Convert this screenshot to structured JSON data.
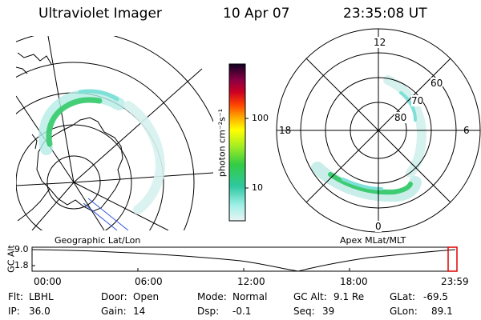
{
  "header": {
    "title": "Ultraviolet Imager",
    "date": "10 Apr 07",
    "time": "23:35:08 UT"
  },
  "colorbar": {
    "unit_label": "photon cm⁻²s⁻¹",
    "tick_100": "100",
    "tick_10": "10"
  },
  "left_map": {
    "caption": "Geographic Lat/Lon"
  },
  "right_map": {
    "caption": "Apex MLat/MLT",
    "mlt_12": "12",
    "mlt_18": "18",
    "mlt_6": "6",
    "mlt_0": "0",
    "lat_60": "60",
    "lat_70": "70",
    "lat_80": "80"
  },
  "timeline": {
    "ylabel": "GC Alt",
    "y_top": "9.0",
    "y_bottom": "1.8",
    "ticks": [
      "00:00",
      "06:00",
      "12:00",
      "18:00",
      "23:59"
    ]
  },
  "status": {
    "row1": [
      {
        "label": "Flt:",
        "value": "LBHL"
      },
      {
        "label": "Door:",
        "value": "Open"
      },
      {
        "label": "Mode:",
        "value": "Normal"
      },
      {
        "label": "GC Alt:",
        "value": "9.1 Re"
      },
      {
        "label": "GLat:",
        "value": "-69.5"
      }
    ],
    "row2": [
      {
        "label": "IP:",
        "value": "36.0"
      },
      {
        "label": "Gain:",
        "value": "14"
      },
      {
        "label": "Dsp:",
        "value": "-0.1"
      },
      {
        "label": "Seq:",
        "value": "39"
      },
      {
        "label": "GLon:",
        "value": "89.1"
      }
    ]
  },
  "colors": {
    "emission_cyan": "#7fe0d8",
    "emission_green": "#2ec864",
    "marker_red": "#e00000"
  }
}
